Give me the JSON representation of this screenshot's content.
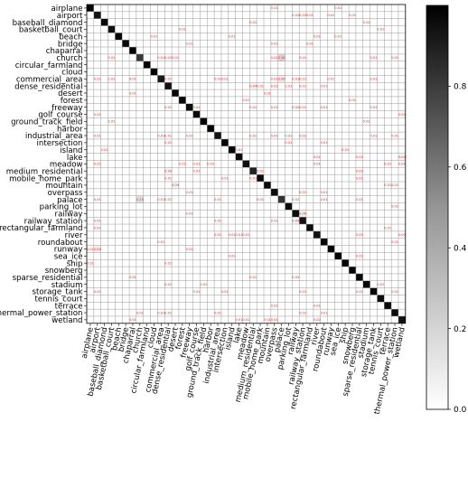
{
  "chart_data": {
    "type": "heatmap",
    "title": "",
    "xlabel": "",
    "ylabel": "",
    "classes": [
      "airplane",
      "airport",
      "baseball_diamond",
      "basketball_court",
      "beach",
      "bridge",
      "chaparral",
      "church",
      "circular_farmland",
      "cloud",
      "commercial_area",
      "dense_residential",
      "desert",
      "forest",
      "freeway",
      "golf_course",
      "ground_track_field",
      "harbor",
      "industrial_area",
      "intersection",
      "island",
      "lake",
      "meadow",
      "medium_residential",
      "mobile_home_park",
      "mountain",
      "overpass",
      "palace",
      "parking_lot",
      "railway",
      "railway_station",
      "rectangular_farmland",
      "river",
      "roundabout",
      "runway",
      "sea_ice",
      "ship",
      "snowberg",
      "sparse_residential",
      "stadium",
      "storage_tank",
      "tennis_court",
      "terrace",
      "thermal_power_station",
      "wetland"
    ],
    "diagonal_values": [
      0.98,
      0.93,
      0.97,
      0.94,
      0.98,
      0.96,
      0.99,
      0.78,
      0.99,
      0.99,
      0.9,
      0.93,
      0.97,
      0.97,
      0.95,
      0.96,
      0.98,
      0.99,
      0.93,
      0.97,
      0.98,
      0.96,
      0.94,
      0.87,
      0.96,
      0.96,
      0.95,
      0.8,
      0.96,
      0.94,
      0.92,
      0.95,
      0.93,
      0.97,
      0.98,
      0.99,
      0.97,
      0.99,
      0.96,
      0.97,
      0.97,
      0.95,
      0.97,
      0.95,
      0.93
    ],
    "off_diagonal": [
      {
        "row": "airplane",
        "col": "overpass",
        "value": 0.01
      },
      {
        "row": "airplane",
        "col": "sea_ice",
        "value": 0.01
      },
      {
        "row": "airport",
        "col": "railway",
        "value": 0.01
      },
      {
        "row": "airport",
        "col": "railway_station",
        "value": 0.02
      },
      {
        "row": "airport",
        "col": "rectangular_farmland",
        "value": 0.01
      },
      {
        "row": "airport",
        "col": "runway",
        "value": 0.01
      },
      {
        "row": "airport",
        "col": "snowberg",
        "value": 0.01
      },
      {
        "row": "baseball_diamond",
        "col": "medium_residential",
        "value": 0.01
      },
      {
        "row": "baseball_diamond",
        "col": "stadium",
        "value": 0.01
      },
      {
        "row": "basketball_court",
        "col": "forest",
        "value": 0.01
      },
      {
        "row": "basketball_court",
        "col": "tennis_court",
        "value": 0.01
      },
      {
        "row": "beach",
        "col": "cloud",
        "value": 0.01
      },
      {
        "row": "beach",
        "col": "island",
        "value": 0.01
      },
      {
        "row": "beach",
        "col": "river",
        "value": 0.01
      },
      {
        "row": "beach",
        "col": "sea_ice",
        "value": 0.01
      },
      {
        "row": "bridge",
        "col": "freeway",
        "value": 0.01
      },
      {
        "row": "bridge",
        "col": "overpass",
        "value": 0.01
      },
      {
        "row": "bridge",
        "col": "rectangular_farmland",
        "value": 0.01
      },
      {
        "row": "church",
        "col": "basketball_court",
        "value": 0.01
      },
      {
        "row": "church",
        "col": "commercial_area",
        "value": 0.01
      },
      {
        "row": "church",
        "col": "dense_residential",
        "value": 0.01
      },
      {
        "row": "church",
        "col": "desert",
        "value": 0.01
      },
      {
        "row": "church",
        "col": "overpass",
        "value": 0.01
      },
      {
        "row": "church",
        "col": "palace",
        "value": 0.16
      },
      {
        "row": "church",
        "col": "railway_station",
        "value": 0.01
      },
      {
        "row": "church",
        "col": "storage_tank",
        "value": 0.01
      },
      {
        "row": "church",
        "col": "thermal_power_station",
        "value": 0.01
      },
      {
        "row": "commercial_area",
        "col": "airport",
        "value": 0.01
      },
      {
        "row": "commercial_area",
        "col": "basketball_court",
        "value": 0.01
      },
      {
        "row": "commercial_area",
        "col": "chaparral",
        "value": 0.01
      },
      {
        "row": "commercial_area",
        "col": "dense_residential",
        "value": 0.01
      },
      {
        "row": "commercial_area",
        "col": "industrial_area",
        "value": 0.01
      },
      {
        "row": "commercial_area",
        "col": "intersection",
        "value": 0.01
      },
      {
        "row": "commercial_area",
        "col": "overpass",
        "value": 0.01
      },
      {
        "row": "commercial_area",
        "col": "palace",
        "value": 0.08
      },
      {
        "row": "commercial_area",
        "col": "railway",
        "value": 0.01
      },
      {
        "row": "commercial_area",
        "col": "railway_station",
        "value": 0.01
      },
      {
        "row": "commercial_area",
        "col": "runway",
        "value": 0.01
      },
      {
        "row": "commercial_area",
        "col": "storage_tank",
        "value": 0.01
      },
      {
        "row": "dense_residential",
        "col": "medium_residential",
        "value": 0.04
      },
      {
        "row": "dense_residential",
        "col": "mobile_home_park",
        "value": 0.01
      },
      {
        "row": "dense_residential",
        "col": "overpass",
        "value": 0.01
      },
      {
        "row": "dense_residential",
        "col": "parking_lot",
        "value": 0.01
      },
      {
        "row": "dense_residential",
        "col": "railway_station",
        "value": 0.01
      },
      {
        "row": "dense_residential",
        "col": "roundabout",
        "value": 0.01
      },
      {
        "row": "desert",
        "col": "chaparral",
        "value": 0.01
      },
      {
        "row": "desert",
        "col": "mountain",
        "value": 0.01
      },
      {
        "row": "forest",
        "col": "meadow",
        "value": 0.01
      },
      {
        "row": "forest",
        "col": "snowberg",
        "value": 0.01
      },
      {
        "row": "freeway",
        "col": "dense_residential",
        "value": 0.01
      },
      {
        "row": "freeway",
        "col": "golf_course",
        "value": 0.01
      },
      {
        "row": "freeway",
        "col": "medium_residential",
        "value": 0.01
      },
      {
        "row": "freeway",
        "col": "overpass",
        "value": 0.01
      },
      {
        "row": "freeway",
        "col": "railway",
        "value": 0.02
      },
      {
        "row": "freeway",
        "col": "railway_station",
        "value": 0.01
      },
      {
        "row": "freeway",
        "col": "roundabout",
        "value": 0.01
      },
      {
        "row": "freeway",
        "col": "storage_tank",
        "value": 0.01
      },
      {
        "row": "golf_course",
        "col": "airport",
        "value": 0.01
      },
      {
        "row": "golf_course",
        "col": "wetland",
        "value": 0.01
      },
      {
        "row": "ground_track_field",
        "col": "basketball_court",
        "value": 0.01
      },
      {
        "row": "ground_track_field",
        "col": "stadium",
        "value": 0.01
      },
      {
        "row": "industrial_area",
        "col": "airport",
        "value": 0.01
      },
      {
        "row": "industrial_area",
        "col": "commercial_area",
        "value": 0.01
      },
      {
        "row": "industrial_area",
        "col": "dense_residential",
        "value": 0.01
      },
      {
        "row": "industrial_area",
        "col": "freeway",
        "value": 0.01
      },
      {
        "row": "industrial_area",
        "col": "medium_residential",
        "value": 0.01
      },
      {
        "row": "industrial_area",
        "col": "overpass",
        "value": 0.01
      },
      {
        "row": "industrial_area",
        "col": "parking_lot",
        "value": 0.01
      },
      {
        "row": "industrial_area",
        "col": "railway_station",
        "value": 0.02
      },
      {
        "row": "industrial_area",
        "col": "storage_tank",
        "value": 0.01
      },
      {
        "row": "industrial_area",
        "col": "thermal_power_station",
        "value": 0.01
      },
      {
        "row": "intersection",
        "col": "dense_residential",
        "value": 0.01
      },
      {
        "row": "intersection",
        "col": "parking_lot",
        "value": 0.01
      },
      {
        "row": "intersection",
        "col": "roundabout",
        "value": 0.01
      },
      {
        "row": "island",
        "col": "baseball_diamond",
        "value": 0.01
      },
      {
        "row": "island",
        "col": "lake",
        "value": 0.01
      },
      {
        "row": "island",
        "col": "ship",
        "value": 0.01
      },
      {
        "row": "lake",
        "col": "river",
        "value": 0.01
      },
      {
        "row": "lake",
        "col": "sparse_residential",
        "value": 0.01
      },
      {
        "row": "lake",
        "col": "wetland",
        "value": 0.04
      },
      {
        "row": "meadow",
        "col": "airport",
        "value": 0.01
      },
      {
        "row": "meadow",
        "col": "forest",
        "value": 0.01
      },
      {
        "row": "meadow",
        "col": "golf_course",
        "value": 0.01
      },
      {
        "row": "meadow",
        "col": "harbor",
        "value": 0.01
      },
      {
        "row": "meadow",
        "col": "river",
        "value": 0.01
      },
      {
        "row": "meadow",
        "col": "terrace",
        "value": 0.01
      },
      {
        "row": "meadow",
        "col": "wetland",
        "value": 0.01
      },
      {
        "row": "medium_residential",
        "col": "dense_residential",
        "value": 0.04
      },
      {
        "row": "medium_residential",
        "col": "golf_course",
        "value": 0.01
      },
      {
        "row": "medium_residential",
        "col": "mobile_home_park",
        "value": 0.01
      },
      {
        "row": "medium_residential",
        "col": "sparse_residential",
        "value": 0.02
      },
      {
        "row": "mobile_home_park",
        "col": "dense_residential",
        "value": 0.01
      },
      {
        "row": "mobile_home_park",
        "col": "intersection",
        "value": 0.01
      },
      {
        "row": "mobile_home_park",
        "col": "medium_residential",
        "value": 0.01
      },
      {
        "row": "mobile_home_park",
        "col": "sparse_residential",
        "value": 0.01
      },
      {
        "row": "mountain",
        "col": "desert",
        "value": 0.04
      },
      {
        "row": "mountain",
        "col": "terrace",
        "value": 0.01
      },
      {
        "row": "mountain",
        "col": "thermal_power_station",
        "value": 0.01
      },
      {
        "row": "overpass",
        "col": "freeway",
        "value": 0.01
      },
      {
        "row": "overpass",
        "col": "railway_station",
        "value": 0.01
      },
      {
        "row": "overpass",
        "col": "roundabout",
        "value": 0.01
      },
      {
        "row": "palace",
        "col": "airport",
        "value": 0.01
      },
      {
        "row": "palace",
        "col": "church",
        "value": 0.13
      },
      {
        "row": "palace",
        "col": "commercial_area",
        "value": 0.01
      },
      {
        "row": "palace",
        "col": "dense_residential",
        "value": 0.01
      },
      {
        "row": "palace",
        "col": "industrial_area",
        "value": 0.01
      },
      {
        "row": "palace",
        "col": "mobile_home_park",
        "value": 0.01
      },
      {
        "row": "palace",
        "col": "railway",
        "value": 0.01
      },
      {
        "row": "palace",
        "col": "roundabout",
        "value": 0.01
      },
      {
        "row": "palace",
        "col": "sparse_residential",
        "value": 0.01
      },
      {
        "row": "parking_lot",
        "col": "thermal_power_station",
        "value": 0.01
      },
      {
        "row": "railway",
        "col": "freeway",
        "value": 0.01
      },
      {
        "row": "railway",
        "col": "railway_station",
        "value": 0.06
      },
      {
        "row": "railway_station",
        "col": "airport",
        "value": 0.01
      },
      {
        "row": "railway_station",
        "col": "industrial_area",
        "value": 0.01
      },
      {
        "row": "railway_station",
        "col": "overpass",
        "value": 0.01
      },
      {
        "row": "railway_station",
        "col": "railway",
        "value": 0.04
      },
      {
        "row": "rectangular_farmland",
        "col": "airport",
        "value": 0.01
      },
      {
        "row": "rectangular_farmland",
        "col": "terrace",
        "value": 0.01
      },
      {
        "row": "river",
        "col": "industrial_area",
        "value": 0.01
      },
      {
        "row": "river",
        "col": "lake",
        "value": 0.01
      },
      {
        "row": "river",
        "col": "meadow",
        "value": 0.01
      },
      {
        "row": "river",
        "col": "island",
        "value": 0.01
      },
      {
        "row": "river",
        "col": "sparse_residential",
        "value": 0.01
      },
      {
        "row": "river",
        "col": "wetland",
        "value": 0.01
      },
      {
        "row": "roundabout",
        "col": "commercial_area",
        "value": 0.01
      },
      {
        "row": "roundabout",
        "col": "thermal_power_station",
        "value": 0.01
      },
      {
        "row": "runway",
        "col": "airplane",
        "value": 0.01
      },
      {
        "row": "runway",
        "col": "airport",
        "value": 0.06
      },
      {
        "row": "runway",
        "col": "freeway",
        "value": 0.01
      },
      {
        "row": "sea_ice",
        "col": "island",
        "value": 0.01
      },
      {
        "row": "sea_ice",
        "col": "sparse_residential",
        "value": 0.01
      },
      {
        "row": "ship",
        "col": "airplane",
        "value": 0.01
      },
      {
        "row": "ship",
        "col": "dense_residential",
        "value": 0.01
      },
      {
        "row": "sparse_residential",
        "col": "chaparral",
        "value": 0.01
      },
      {
        "row": "sparse_residential",
        "col": "medium_residential",
        "value": 0.01
      },
      {
        "row": "sparse_residential",
        "col": "railway",
        "value": 0.01
      },
      {
        "row": "stadium",
        "col": "dense_residential",
        "value": 0.01
      },
      {
        "row": "stadium",
        "col": "ground_track_field",
        "value": 0.01
      },
      {
        "row": "stadium",
        "col": "tennis_court",
        "value": 0.01
      },
      {
        "row": "storage_tank",
        "col": "airport",
        "value": 0.01
      },
      {
        "row": "storage_tank",
        "col": "golf_course",
        "value": 0.01
      },
      {
        "row": "storage_tank",
        "col": "intersection",
        "value": 0.01
      },
      {
        "row": "storage_tank",
        "col": "railway_station",
        "value": 0.01
      },
      {
        "row": "storage_tank",
        "col": "sparse_residential",
        "value": 0.01
      },
      {
        "row": "storage_tank",
        "col": "thermal_power_station",
        "value": 0.01
      },
      {
        "row": "terrace",
        "col": "overpass",
        "value": 0.01
      },
      {
        "row": "terrace",
        "col": "river",
        "value": 0.01
      },
      {
        "row": "thermal_power_station",
        "col": "church",
        "value": 0.01
      },
      {
        "row": "thermal_power_station",
        "col": "commercial_area",
        "value": 0.01
      },
      {
        "row": "thermal_power_station",
        "col": "dense_residential",
        "value": 0.01
      },
      {
        "row": "thermal_power_station",
        "col": "industrial_area",
        "value": 0.01
      },
      {
        "row": "thermal_power_station",
        "col": "railway_station",
        "value": 0.01
      },
      {
        "row": "thermal_power_station",
        "col": "roundabout",
        "value": 0.01
      },
      {
        "row": "wetland",
        "col": "chaparral",
        "value": 0.01
      },
      {
        "row": "wetland",
        "col": "lake",
        "value": 0.01
      },
      {
        "row": "wetland",
        "col": "meadow",
        "value": 0.01
      },
      {
        "row": "wetland",
        "col": "mountain",
        "value": 0.01
      },
      {
        "row": "wetland",
        "col": "overpass",
        "value": 0.01
      },
      {
        "row": "wetland",
        "col": "river",
        "value": 0.02
      }
    ],
    "value_range": [
      0,
      1
    ],
    "colormap": "Greys",
    "colorbar": {
      "ticks": [
        0.0,
        0.2,
        0.4,
        0.6,
        0.8
      ],
      "tick_labels": [
        "0.0",
        "0.2",
        "0.4",
        "0.6",
        "0.8"
      ]
    },
    "grid": true,
    "cell_label_color": "#e03030",
    "grid_color": "#999999"
  }
}
